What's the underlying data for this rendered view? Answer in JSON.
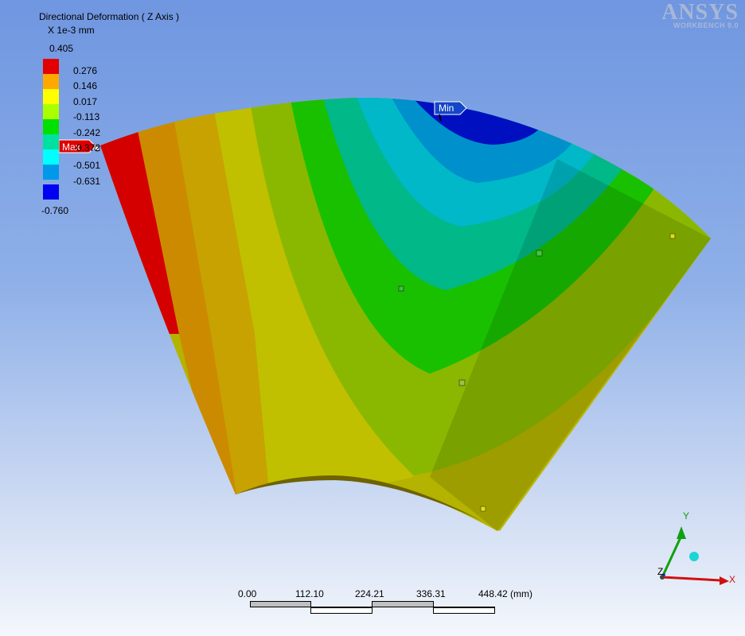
{
  "result": {
    "title": "Directional Deformation ( Z Axis )",
    "units": "X 1e-3 mm"
  },
  "legend": {
    "max_value": "0.405",
    "min_value": "-0.760",
    "ticks": [
      "0.276",
      "0.146",
      "0.017",
      "-0.113",
      "-0.242",
      "-0.372",
      "-0.501",
      "-0.631"
    ],
    "colors": [
      "#e40000",
      "#ffa800",
      "#ffff00",
      "#a9ff00",
      "#00e000",
      "#00e0a0",
      "#00ffff",
      "#0098e8",
      "#0000f0"
    ]
  },
  "probes": {
    "max_label": "Max",
    "min_label": "Min",
    "max_color": "#e00000",
    "min_color": "#1446c8"
  },
  "brand": {
    "name": "ANSYS",
    "product": "WORKBENCH 9.0"
  },
  "scale_bar": {
    "labels": [
      "0.00",
      "112.10",
      "224.21",
      "336.31",
      "448.42 (mm)"
    ]
  },
  "triad": {
    "x_label": "X",
    "y_label": "Y",
    "z_label": "Z",
    "x_color": "#d01010",
    "y_color": "#10a010",
    "z_color": "#1010d0",
    "iso_color": "#19d6d6"
  }
}
